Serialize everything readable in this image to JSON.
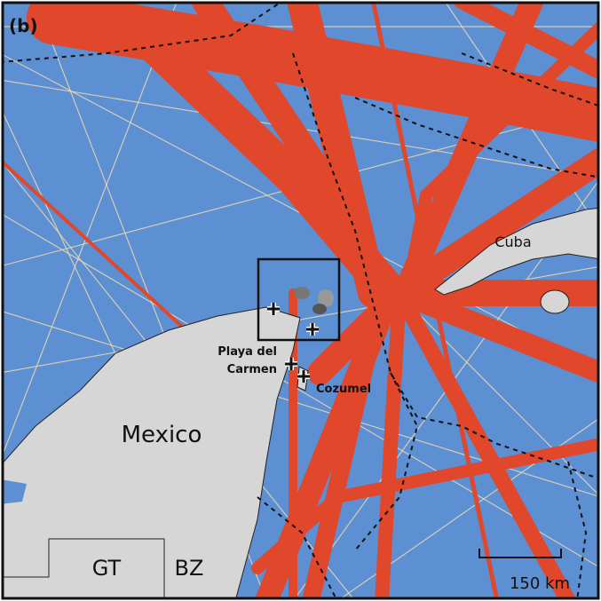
{
  "panel_label": "(b)",
  "labels": {
    "cuba": "Cuba",
    "mexico": "Mexico",
    "playa_del_carmen": [
      "Playa del",
      "Carmen"
    ],
    "cozumel": "Cozumel",
    "guatemala": "GT",
    "belize": "BZ"
  },
  "scale_bar": "150 km"
}
